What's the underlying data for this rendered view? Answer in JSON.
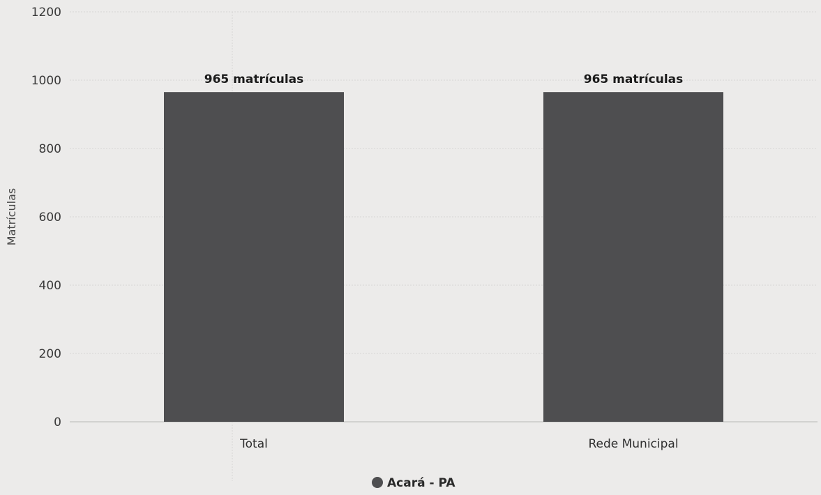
{
  "chart_data": {
    "type": "bar",
    "categories": [
      "Total",
      "Rede Municipal"
    ],
    "series": [
      {
        "name": "Acará - PA",
        "values": [
          965,
          965
        ],
        "data_labels": [
          "965 matrículas",
          "965 matrículas"
        ],
        "color": "#4e4e50"
      }
    ],
    "ylabel": "Matrículas",
    "xlabel": "",
    "ylim": [
      0,
      1200
    ],
    "yticks": [
      0,
      200,
      400,
      600,
      800,
      1000,
      1200
    ],
    "grid": true,
    "legend": "bottom-center"
  }
}
